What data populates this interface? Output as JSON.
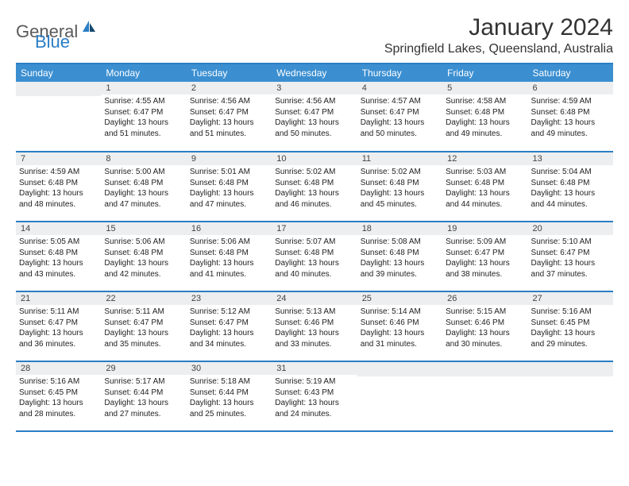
{
  "logo": {
    "general": "General",
    "blue": "Blue"
  },
  "header": {
    "title": "January 2024",
    "location": "Springfield Lakes, Queensland, Australia"
  },
  "dayNames": [
    "Sunday",
    "Monday",
    "Tuesday",
    "Wednesday",
    "Thursday",
    "Friday",
    "Saturday"
  ],
  "colors": {
    "accent": "#3b8fd1",
    "border": "#2a7ec5",
    "dayNumBg": "#eceeef"
  },
  "weeks": [
    [
      null,
      {
        "n": "1",
        "sunrise": "Sunrise: 4:55 AM",
        "sunset": "Sunset: 6:47 PM",
        "daylight": "Daylight: 13 hours and 51 minutes."
      },
      {
        "n": "2",
        "sunrise": "Sunrise: 4:56 AM",
        "sunset": "Sunset: 6:47 PM",
        "daylight": "Daylight: 13 hours and 51 minutes."
      },
      {
        "n": "3",
        "sunrise": "Sunrise: 4:56 AM",
        "sunset": "Sunset: 6:47 PM",
        "daylight": "Daylight: 13 hours and 50 minutes."
      },
      {
        "n": "4",
        "sunrise": "Sunrise: 4:57 AM",
        "sunset": "Sunset: 6:47 PM",
        "daylight": "Daylight: 13 hours and 50 minutes."
      },
      {
        "n": "5",
        "sunrise": "Sunrise: 4:58 AM",
        "sunset": "Sunset: 6:48 PM",
        "daylight": "Daylight: 13 hours and 49 minutes."
      },
      {
        "n": "6",
        "sunrise": "Sunrise: 4:59 AM",
        "sunset": "Sunset: 6:48 PM",
        "daylight": "Daylight: 13 hours and 49 minutes."
      }
    ],
    [
      {
        "n": "7",
        "sunrise": "Sunrise: 4:59 AM",
        "sunset": "Sunset: 6:48 PM",
        "daylight": "Daylight: 13 hours and 48 minutes."
      },
      {
        "n": "8",
        "sunrise": "Sunrise: 5:00 AM",
        "sunset": "Sunset: 6:48 PM",
        "daylight": "Daylight: 13 hours and 47 minutes."
      },
      {
        "n": "9",
        "sunrise": "Sunrise: 5:01 AM",
        "sunset": "Sunset: 6:48 PM",
        "daylight": "Daylight: 13 hours and 47 minutes."
      },
      {
        "n": "10",
        "sunrise": "Sunrise: 5:02 AM",
        "sunset": "Sunset: 6:48 PM",
        "daylight": "Daylight: 13 hours and 46 minutes."
      },
      {
        "n": "11",
        "sunrise": "Sunrise: 5:02 AM",
        "sunset": "Sunset: 6:48 PM",
        "daylight": "Daylight: 13 hours and 45 minutes."
      },
      {
        "n": "12",
        "sunrise": "Sunrise: 5:03 AM",
        "sunset": "Sunset: 6:48 PM",
        "daylight": "Daylight: 13 hours and 44 minutes."
      },
      {
        "n": "13",
        "sunrise": "Sunrise: 5:04 AM",
        "sunset": "Sunset: 6:48 PM",
        "daylight": "Daylight: 13 hours and 44 minutes."
      }
    ],
    [
      {
        "n": "14",
        "sunrise": "Sunrise: 5:05 AM",
        "sunset": "Sunset: 6:48 PM",
        "daylight": "Daylight: 13 hours and 43 minutes."
      },
      {
        "n": "15",
        "sunrise": "Sunrise: 5:06 AM",
        "sunset": "Sunset: 6:48 PM",
        "daylight": "Daylight: 13 hours and 42 minutes."
      },
      {
        "n": "16",
        "sunrise": "Sunrise: 5:06 AM",
        "sunset": "Sunset: 6:48 PM",
        "daylight": "Daylight: 13 hours and 41 minutes."
      },
      {
        "n": "17",
        "sunrise": "Sunrise: 5:07 AM",
        "sunset": "Sunset: 6:48 PM",
        "daylight": "Daylight: 13 hours and 40 minutes."
      },
      {
        "n": "18",
        "sunrise": "Sunrise: 5:08 AM",
        "sunset": "Sunset: 6:48 PM",
        "daylight": "Daylight: 13 hours and 39 minutes."
      },
      {
        "n": "19",
        "sunrise": "Sunrise: 5:09 AM",
        "sunset": "Sunset: 6:47 PM",
        "daylight": "Daylight: 13 hours and 38 minutes."
      },
      {
        "n": "20",
        "sunrise": "Sunrise: 5:10 AM",
        "sunset": "Sunset: 6:47 PM",
        "daylight": "Daylight: 13 hours and 37 minutes."
      }
    ],
    [
      {
        "n": "21",
        "sunrise": "Sunrise: 5:11 AM",
        "sunset": "Sunset: 6:47 PM",
        "daylight": "Daylight: 13 hours and 36 minutes."
      },
      {
        "n": "22",
        "sunrise": "Sunrise: 5:11 AM",
        "sunset": "Sunset: 6:47 PM",
        "daylight": "Daylight: 13 hours and 35 minutes."
      },
      {
        "n": "23",
        "sunrise": "Sunrise: 5:12 AM",
        "sunset": "Sunset: 6:47 PM",
        "daylight": "Daylight: 13 hours and 34 minutes."
      },
      {
        "n": "24",
        "sunrise": "Sunrise: 5:13 AM",
        "sunset": "Sunset: 6:46 PM",
        "daylight": "Daylight: 13 hours and 33 minutes."
      },
      {
        "n": "25",
        "sunrise": "Sunrise: 5:14 AM",
        "sunset": "Sunset: 6:46 PM",
        "daylight": "Daylight: 13 hours and 31 minutes."
      },
      {
        "n": "26",
        "sunrise": "Sunrise: 5:15 AM",
        "sunset": "Sunset: 6:46 PM",
        "daylight": "Daylight: 13 hours and 30 minutes."
      },
      {
        "n": "27",
        "sunrise": "Sunrise: 5:16 AM",
        "sunset": "Sunset: 6:45 PM",
        "daylight": "Daylight: 13 hours and 29 minutes."
      }
    ],
    [
      {
        "n": "28",
        "sunrise": "Sunrise: 5:16 AM",
        "sunset": "Sunset: 6:45 PM",
        "daylight": "Daylight: 13 hours and 28 minutes."
      },
      {
        "n": "29",
        "sunrise": "Sunrise: 5:17 AM",
        "sunset": "Sunset: 6:44 PM",
        "daylight": "Daylight: 13 hours and 27 minutes."
      },
      {
        "n": "30",
        "sunrise": "Sunrise: 5:18 AM",
        "sunset": "Sunset: 6:44 PM",
        "daylight": "Daylight: 13 hours and 25 minutes."
      },
      {
        "n": "31",
        "sunrise": "Sunrise: 5:19 AM",
        "sunset": "Sunset: 6:43 PM",
        "daylight": "Daylight: 13 hours and 24 minutes."
      },
      null,
      null,
      null
    ]
  ]
}
